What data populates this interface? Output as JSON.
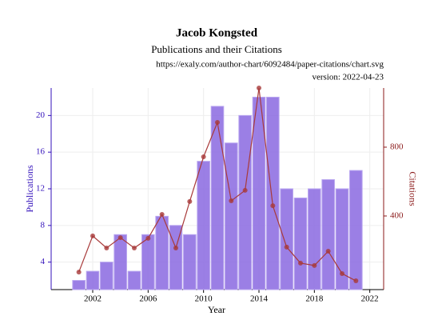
{
  "chart_data": {
    "type": "bar",
    "title": "Jacob Kongsted",
    "subtitle": "Publications and their Citations",
    "source": "https://exaly.com/author-chart/6092484/paper-citations/chart.svg",
    "version": "version: 2022-04-23",
    "x_label": "Year",
    "y_label": "Publications",
    "y2_label": "Citations",
    "x": [
      2001,
      2002,
      2003,
      2004,
      2005,
      2006,
      2007,
      2008,
      2009,
      2010,
      2011,
      2012,
      2013,
      2014,
      2015,
      2016,
      2017,
      2018,
      2019,
      2020,
      2021
    ],
    "series": [
      {
        "name": "Publications",
        "type": "bar",
        "color": "#8a68e0",
        "values": [
          2,
          3,
          4,
          7,
          3,
          7,
          9,
          8,
          7,
          15,
          21,
          17,
          20,
          22,
          22,
          12,
          11,
          12,
          13,
          12,
          14
        ]
      },
      {
        "name": "Citations",
        "type": "line",
        "axis": "y2",
        "color": "#a83a3a",
        "values": [
          74,
          284,
          214,
          274,
          214,
          270,
          409,
          214,
          484,
          744,
          944,
          488,
          549,
          1144,
          460,
          219,
          126,
          112,
          195,
          65,
          23
        ]
      }
    ],
    "xlim": [
      1999,
      2023
    ],
    "xticks": [
      2002,
      2006,
      2010,
      2014,
      2018,
      2022
    ],
    "ylim": [
      1,
      23
    ],
    "yticks": [
      4,
      8,
      12,
      16,
      20
    ],
    "y2lim": [
      -28,
      1144
    ],
    "y2ticks": [
      400,
      800
    ],
    "grid": true
  }
}
